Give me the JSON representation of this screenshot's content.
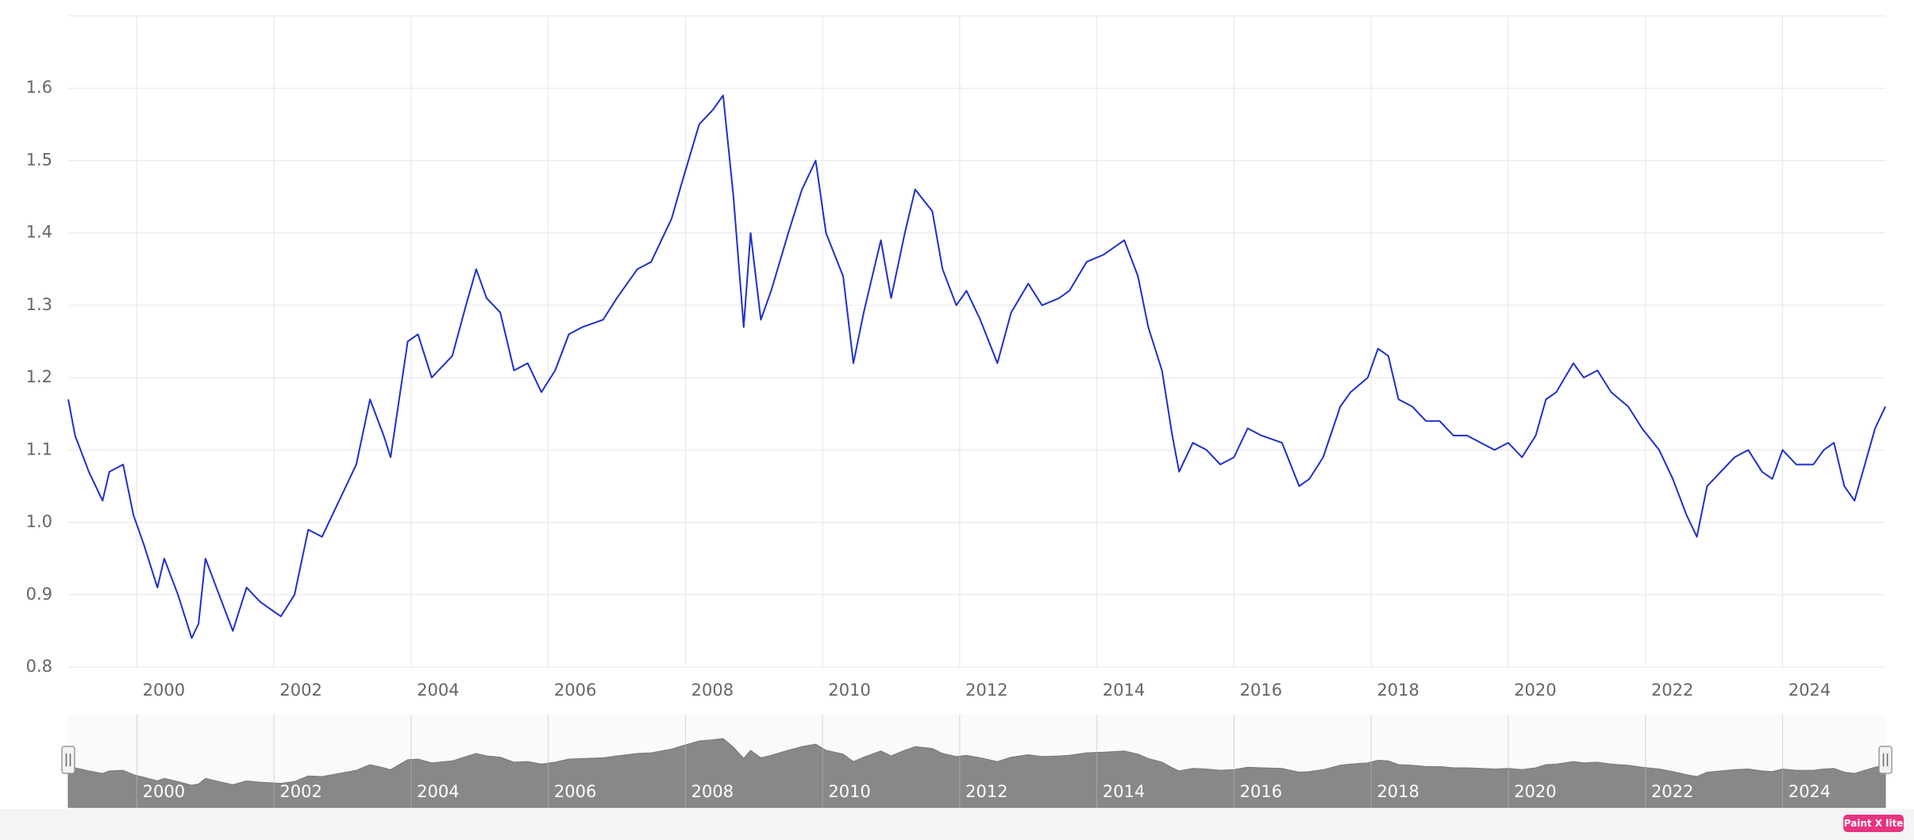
{
  "chart_data": {
    "type": "line",
    "color": "#1f2fcc",
    "grid": true,
    "xlim": [
      1999.0,
      2025.5
    ],
    "xticks": [
      2000,
      2002,
      2004,
      2006,
      2008,
      2010,
      2012,
      2014,
      2016,
      2018,
      2020,
      2022,
      2024
    ],
    "ylim": [
      0.8,
      1.7
    ],
    "yticks": [
      0.8,
      0.9,
      {
        "value": 1,
        "label": "1.0"
      },
      1.1,
      1.2,
      1.3,
      1.4,
      1.5,
      1.6
    ],
    "x": [
      1999.0,
      1999.1,
      1999.3,
      1999.5,
      1999.6,
      1999.8,
      1999.95,
      2000.1,
      2000.3,
      2000.4,
      2000.6,
      2000.8,
      2000.9,
      2001.0,
      2001.2,
      2001.4,
      2001.6,
      2001.8,
      2001.95,
      2002.1,
      2002.3,
      2002.5,
      2002.7,
      2002.95,
      2003.2,
      2003.4,
      2003.6,
      2003.7,
      2003.95,
      2004.1,
      2004.3,
      2004.6,
      2004.8,
      2004.95,
      2005.1,
      2005.3,
      2005.5,
      2005.7,
      2005.9,
      2006.1,
      2006.3,
      2006.5,
      2006.8,
      2007.0,
      2007.3,
      2007.5,
      2007.8,
      2007.95,
      2008.2,
      2008.4,
      2008.55,
      2008.7,
      2008.85,
      2008.95,
      2009.1,
      2009.25,
      2009.5,
      2009.7,
      2009.9,
      2010.05,
      2010.3,
      2010.45,
      2010.6,
      2010.85,
      2011.0,
      2011.2,
      2011.35,
      2011.6,
      2011.75,
      2011.95,
      2012.1,
      2012.3,
      2012.55,
      2012.75,
      2013.0,
      2013.2,
      2013.45,
      2013.6,
      2013.85,
      2014.1,
      2014.4,
      2014.6,
      2014.75,
      2014.95,
      2015.1,
      2015.2,
      2015.4,
      2015.6,
      2015.8,
      2016.0,
      2016.2,
      2016.4,
      2016.7,
      2016.95,
      2017.1,
      2017.3,
      2017.55,
      2017.7,
      2017.95,
      2018.1,
      2018.25,
      2018.4,
      2018.6,
      2018.8,
      2019.0,
      2019.2,
      2019.4,
      2019.6,
      2019.8,
      2020.0,
      2020.2,
      2020.4,
      2020.55,
      2020.7,
      2020.95,
      2021.1,
      2021.3,
      2021.5,
      2021.75,
      2021.95,
      2022.2,
      2022.4,
      2022.6,
      2022.75,
      2022.9,
      2023.1,
      2023.3,
      2023.5,
      2023.7,
      2023.85,
      2024.0,
      2024.2,
      2024.45,
      2024.6,
      2024.75,
      2024.9,
      2025.05,
      2025.2,
      2025.35,
      2025.5
    ],
    "values": [
      1.17,
      1.12,
      1.07,
      1.03,
      1.07,
      1.08,
      1.01,
      0.97,
      0.91,
      0.95,
      0.9,
      0.84,
      0.86,
      0.95,
      0.9,
      0.85,
      0.91,
      0.89,
      0.88,
      0.87,
      0.9,
      0.99,
      0.98,
      1.03,
      1.08,
      1.17,
      1.12,
      1.09,
      1.25,
      1.26,
      1.2,
      1.23,
      1.3,
      1.35,
      1.31,
      1.29,
      1.21,
      1.22,
      1.18,
      1.21,
      1.26,
      1.27,
      1.28,
      1.31,
      1.35,
      1.36,
      1.42,
      1.47,
      1.55,
      1.57,
      1.59,
      1.45,
      1.27,
      1.4,
      1.28,
      1.32,
      1.4,
      1.46,
      1.5,
      1.4,
      1.34,
      1.22,
      1.29,
      1.39,
      1.31,
      1.4,
      1.46,
      1.43,
      1.35,
      1.3,
      1.32,
      1.28,
      1.22,
      1.29,
      1.33,
      1.3,
      1.31,
      1.32,
      1.36,
      1.37,
      1.39,
      1.34,
      1.27,
      1.21,
      1.12,
      1.07,
      1.11,
      1.1,
      1.08,
      1.09,
      1.13,
      1.12,
      1.11,
      1.05,
      1.06,
      1.09,
      1.16,
      1.18,
      1.2,
      1.24,
      1.23,
      1.17,
      1.16,
      1.14,
      1.14,
      1.12,
      1.12,
      1.11,
      1.1,
      1.11,
      1.09,
      1.12,
      1.17,
      1.18,
      1.22,
      1.2,
      1.21,
      1.18,
      1.16,
      1.13,
      1.1,
      1.06,
      1.01,
      0.98,
      1.05,
      1.07,
      1.09,
      1.1,
      1.07,
      1.06,
      1.1,
      1.08,
      1.08,
      1.1,
      1.11,
      1.05,
      1.03,
      1.08,
      1.13,
      1.16
    ]
  },
  "watermark": "Paint X lite"
}
